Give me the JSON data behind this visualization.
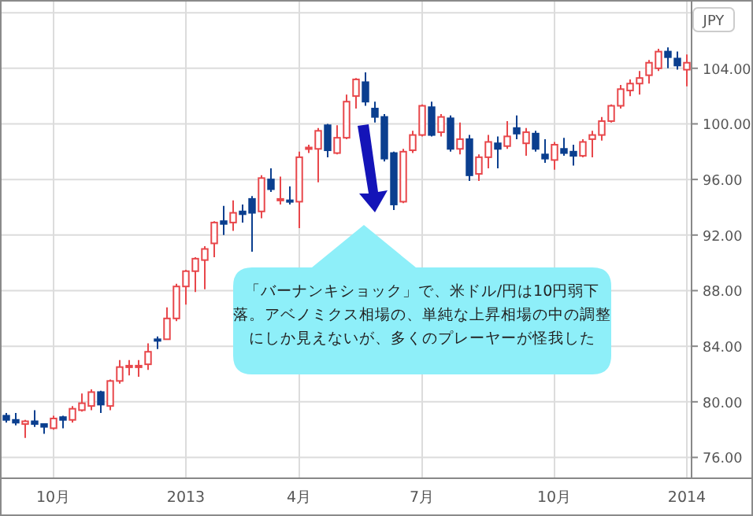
{
  "chart_data": {
    "type": "candlestick",
    "ylabel": "JPY",
    "categories": [
      null,
      null,
      null,
      null,
      null,
      "10月",
      null,
      null,
      null,
      null,
      null,
      null,
      null,
      null,
      null,
      null,
      null,
      null,
      null,
      "2013",
      null,
      null,
      null,
      null,
      null,
      null,
      null,
      null,
      null,
      null,
      null,
      "4月",
      null,
      null,
      null,
      null,
      null,
      null,
      null,
      null,
      null,
      null,
      null,
      null,
      "7月",
      null,
      null,
      null,
      null,
      null,
      null,
      null,
      null,
      null,
      null,
      null,
      null,
      null,
      "10月",
      null,
      null,
      null,
      null,
      null,
      null,
      null,
      null,
      null,
      null,
      null,
      null,
      null,
      "2014"
    ],
    "ohlc": [
      [
        79.0,
        79.2,
        78.5,
        78.7
      ],
      [
        78.7,
        79.2,
        78.3,
        78.5
      ],
      [
        78.4,
        78.7,
        77.4,
        78.6
      ],
      [
        78.6,
        79.4,
        78.2,
        78.4
      ],
      [
        78.4,
        78.4,
        77.7,
        78.2
      ],
      [
        78.1,
        79.0,
        78.0,
        78.8
      ],
      [
        78.9,
        79.0,
        78.1,
        78.7
      ],
      [
        78.7,
        79.7,
        78.5,
        79.5
      ],
      [
        79.4,
        80.6,
        79.3,
        79.9
      ],
      [
        79.7,
        80.9,
        79.4,
        80.7
      ],
      [
        80.7,
        80.8,
        79.2,
        79.8
      ],
      [
        79.7,
        81.6,
        79.4,
        81.5
      ],
      [
        81.5,
        83.0,
        81.3,
        82.5
      ],
      [
        82.5,
        83.0,
        81.9,
        82.6
      ],
      [
        82.5,
        83.0,
        81.8,
        82.6
      ],
      [
        82.7,
        84.2,
        82.3,
        83.6
      ],
      [
        84.5,
        84.7,
        83.8,
        84.4
      ],
      [
        84.5,
        86.8,
        84.5,
        86.0
      ],
      [
        86.0,
        88.5,
        85.8,
        88.3
      ],
      [
        88.3,
        89.5,
        87.0,
        89.4
      ],
      [
        89.4,
        90.4,
        87.9,
        90.3
      ],
      [
        90.2,
        91.2,
        88.1,
        91.0
      ],
      [
        91.4,
        93.0,
        90.4,
        92.9
      ],
      [
        93.0,
        94.1,
        92.0,
        92.8
      ],
      [
        92.9,
        94.5,
        92.3,
        93.6
      ],
      [
        93.7,
        94.2,
        92.9,
        93.5
      ],
      [
        94.6,
        94.8,
        90.8,
        93.6
      ],
      [
        93.7,
        96.3,
        93.2,
        96.1
      ],
      [
        96.0,
        96.8,
        95.1,
        95.3
      ],
      [
        94.5,
        96.2,
        94.2,
        94.6
      ],
      [
        94.5,
        95.5,
        94.2,
        94.4
      ],
      [
        94.4,
        98.0,
        92.5,
        97.6
      ],
      [
        98.2,
        98.5,
        97.9,
        98.3
      ],
      [
        98.2,
        99.7,
        95.8,
        99.5
      ],
      [
        99.9,
        100.0,
        97.6,
        98.1
      ],
      [
        97.9,
        99.9,
        97.8,
        99.0
      ],
      [
        99.0,
        102.1,
        98.9,
        101.6
      ],
      [
        102.0,
        103.3,
        101.1,
        103.2
      ],
      [
        103.0,
        103.7,
        101.3,
        101.6
      ],
      [
        101.1,
        101.6,
        100.1,
        100.5
      ],
      [
        100.5,
        100.7,
        97.3,
        97.5
      ],
      [
        97.9,
        98.0,
        93.8,
        94.2
      ],
      [
        94.4,
        98.2,
        94.3,
        98.0
      ],
      [
        98.1,
        99.5,
        97.9,
        99.2
      ],
      [
        99.2,
        101.4,
        99.1,
        101.3
      ],
      [
        101.2,
        101.6,
        99.1,
        99.2
      ],
      [
        99.4,
        100.7,
        99.1,
        100.5
      ],
      [
        100.4,
        100.6,
        98.0,
        98.2
      ],
      [
        98.2,
        100.1,
        97.8,
        98.9
      ],
      [
        98.9,
        99.2,
        95.9,
        96.3
      ],
      [
        96.4,
        97.8,
        95.9,
        97.6
      ],
      [
        97.6,
        99.2,
        96.8,
        98.7
      ],
      [
        98.6,
        99.1,
        96.8,
        98.2
      ],
      [
        98.4,
        100.2,
        98.2,
        99.1
      ],
      [
        99.7,
        100.6,
        98.9,
        99.3
      ],
      [
        98.6,
        99.7,
        97.7,
        99.4
      ],
      [
        99.3,
        99.5,
        98.0,
        98.2
      ],
      [
        97.8,
        98.9,
        97.2,
        97.5
      ],
      [
        97.4,
        98.7,
        96.7,
        98.5
      ],
      [
        98.2,
        99.0,
        97.7,
        97.9
      ],
      [
        98.0,
        98.5,
        97.0,
        97.7
      ],
      [
        97.7,
        98.9,
        97.6,
        98.7
      ],
      [
        98.9,
        99.5,
        97.6,
        99.2
      ],
      [
        99.2,
        100.5,
        98.8,
        100.2
      ],
      [
        100.2,
        101.4,
        100.1,
        101.3
      ],
      [
        101.3,
        102.8,
        101.1,
        102.5
      ],
      [
        102.4,
        103.2,
        102.0,
        102.9
      ],
      [
        102.9,
        103.8,
        102.1,
        103.3
      ],
      [
        103.5,
        104.6,
        102.9,
        104.4
      ],
      [
        104.0,
        105.4,
        103.8,
        105.2
      ],
      [
        105.2,
        105.5,
        104.0,
        104.8
      ],
      [
        104.7,
        105.2,
        103.9,
        104.2
      ],
      [
        103.9,
        105.0,
        102.7,
        104.4
      ]
    ],
    "ylim": [
      74.5,
      108.8
    ],
    "yticks": [
      {
        "value": 76,
        "label": "76.00"
      },
      {
        "value": 80,
        "label": "80.00"
      },
      {
        "value": 84,
        "label": "84.00"
      },
      {
        "value": 88,
        "label": "88.00"
      },
      {
        "value": 92,
        "label": "92.00"
      },
      {
        "value": 96,
        "label": "96.00"
      },
      {
        "value": 100,
        "label": "100.00"
      },
      {
        "value": 104,
        "label": "104.00"
      },
      {
        "value": 108,
        "label": null
      }
    ],
    "grid": true,
    "annotations": [
      "「バーナンキショック」で、米ドル/円は10円弱下落。アベノミクス相場の、単純な上昇相場の中の調整にしか見えないが、多くのプレーヤーが怪我した"
    ]
  }
}
